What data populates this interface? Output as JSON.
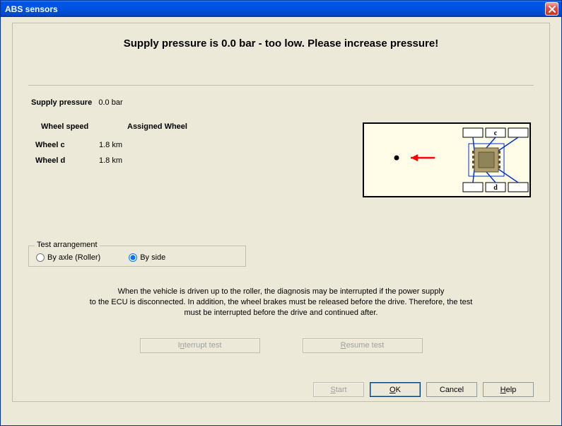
{
  "window": {
    "title": "ABS sensors"
  },
  "banner": "Supply pressure is  0.0 bar - too low. Please increase pressure!",
  "supply": {
    "label": "Supply pressure",
    "value": "0.0 bar"
  },
  "columns": {
    "wheel_speed": "Wheel speed",
    "assigned_wheel": "Assigned Wheel"
  },
  "rows": [
    {
      "label": "Wheel c",
      "value": "1.8 km"
    },
    {
      "label": "Wheel d",
      "value": "1.8 km"
    }
  ],
  "testArrangement": {
    "legend": "Test arrangement",
    "options": {
      "byAxle": "By axle (Roller)",
      "bySide": "By side"
    },
    "selected": "bySide"
  },
  "note": {
    "line1": "When the vehicle is driven up to the roller, the diagnosis may be interrupted if the power supply",
    "line2": "to the ECU is disconnected. In addition, the wheel brakes must be released before the drive. Therefore, the test",
    "line3": "must be interrupted before the drive and continued after."
  },
  "buttons": {
    "interrupt": {
      "pre": "I",
      "u": "n",
      "post": "terrupt test"
    },
    "resume": {
      "pre": "",
      "u": "R",
      "post": "esume test"
    },
    "start": {
      "pre": "",
      "u": "S",
      "post": "tart"
    },
    "ok": {
      "pre": "",
      "u": "O",
      "post": "K"
    },
    "cancel": {
      "text": "Cancel"
    },
    "help": {
      "pre": "",
      "u": "H",
      "post": "elp"
    }
  },
  "diagram": {
    "bg": "#fffde8",
    "border": "#000000",
    "wire": "#0033cc",
    "arrow": "#ff0000",
    "dot": "#000000",
    "ecu_fill": "#b0a070",
    "ecu_border": "#605030",
    "box_fill": "#ffffff",
    "labels": {
      "top": "c",
      "bottom": "d"
    }
  }
}
